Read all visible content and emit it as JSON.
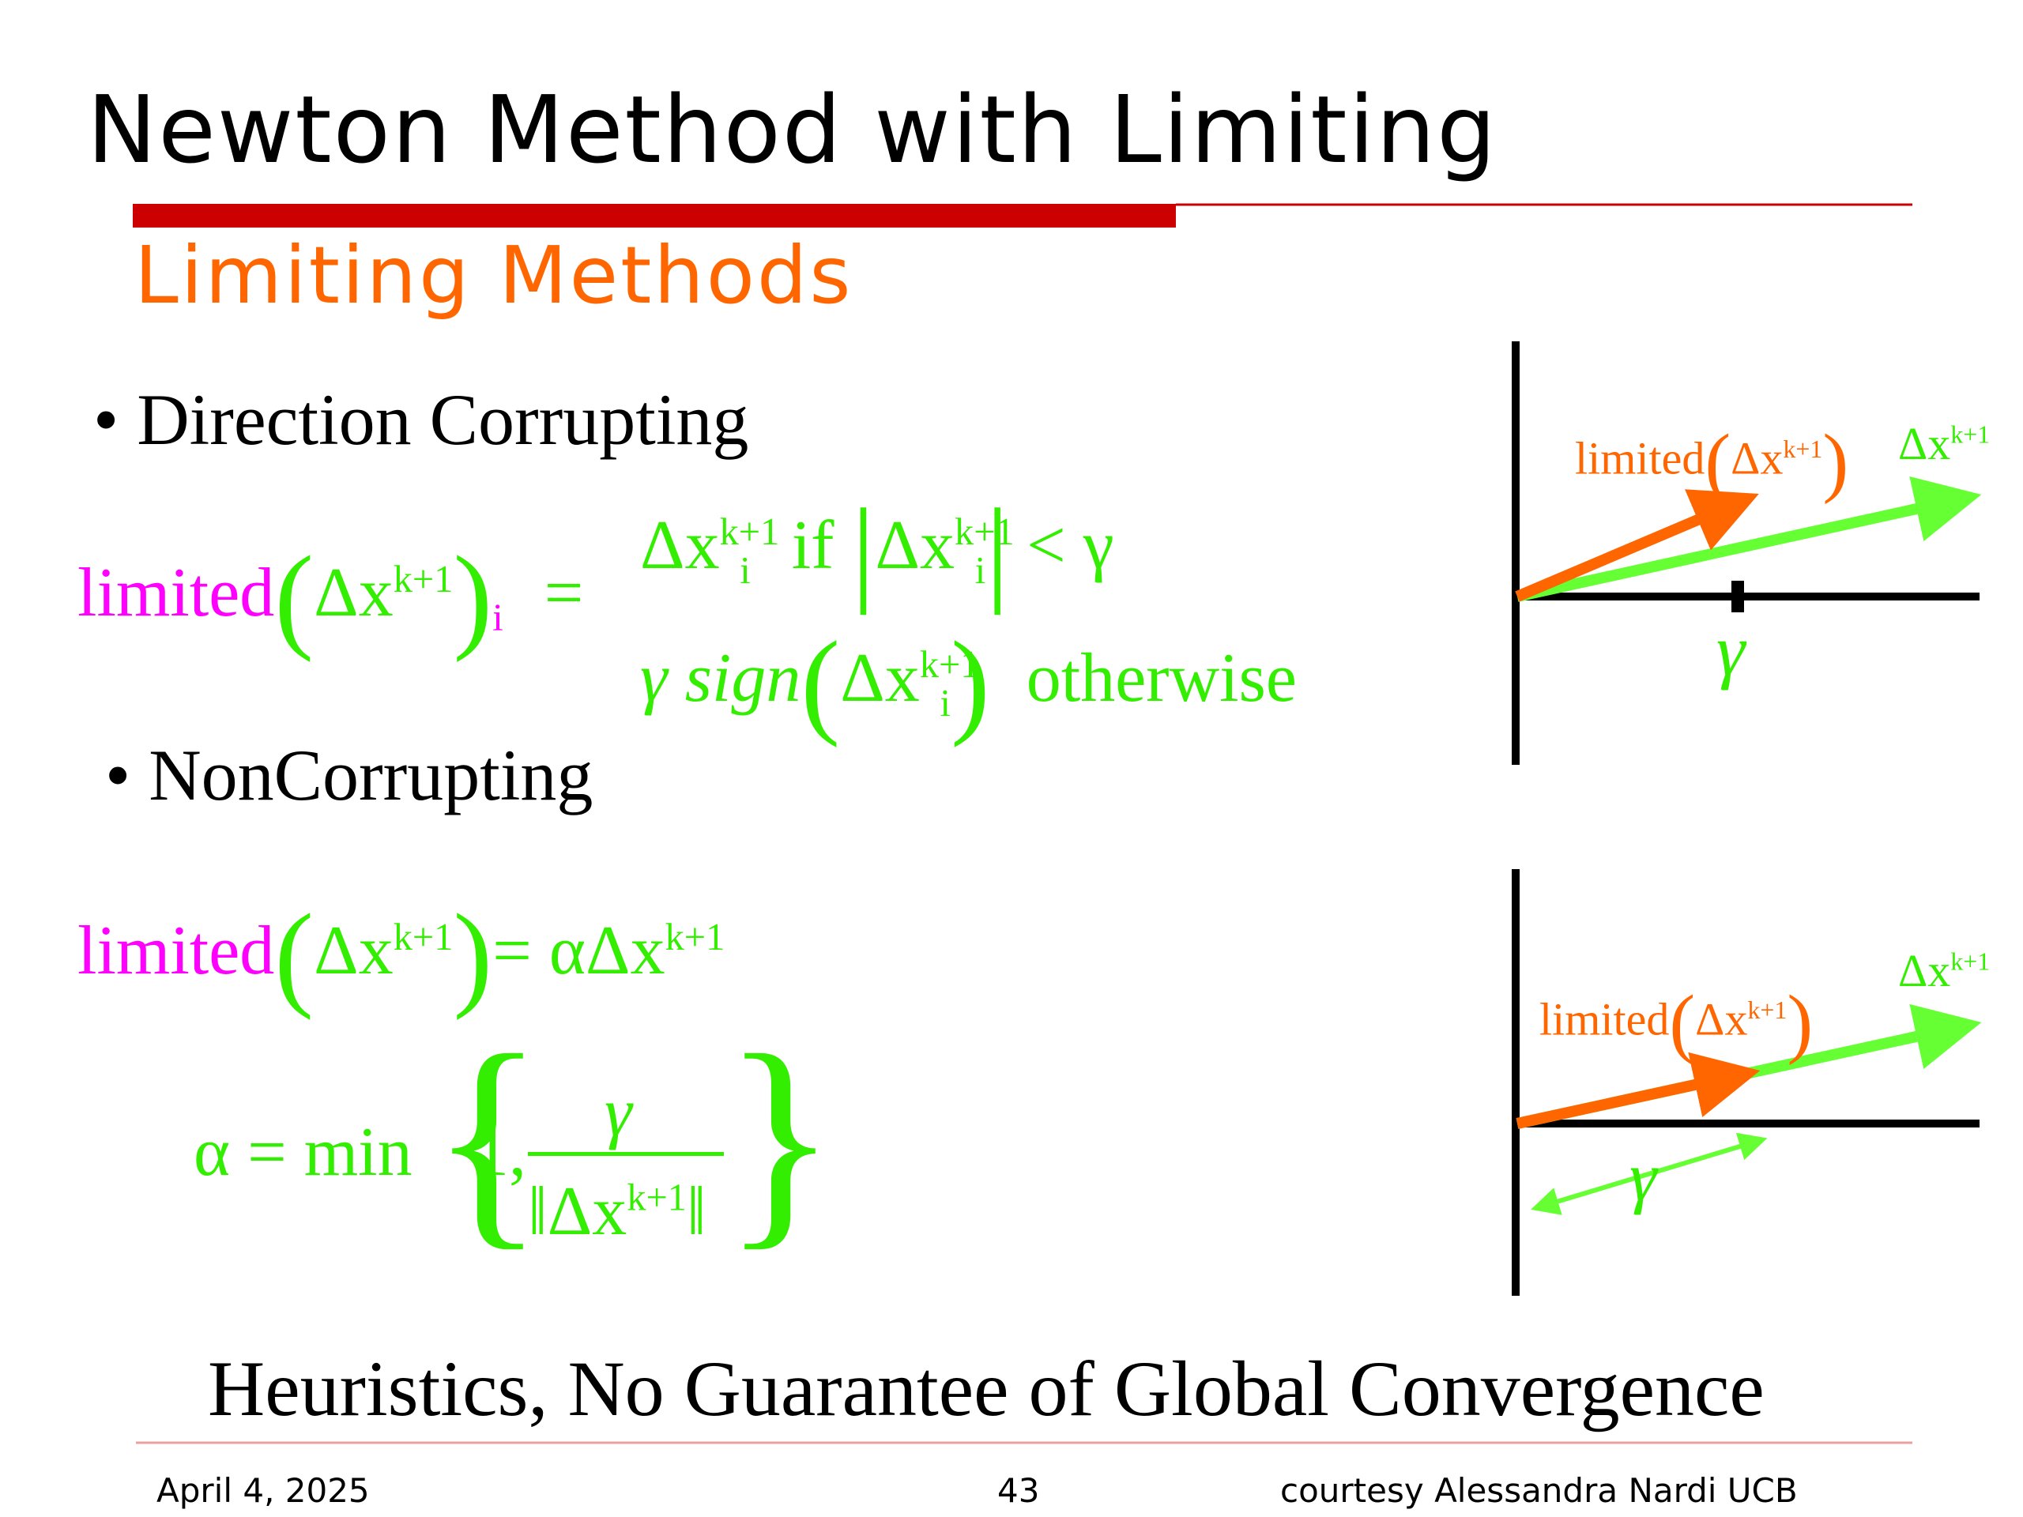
{
  "slide": {
    "title": "Newton Method with Limiting",
    "subtitle": "Limiting Methods",
    "bullet1": "• Direction Corrupting",
    "bullet2": "• NonCorrupting",
    "conclusion": "Heuristics, No Guarantee of Global Convergence"
  },
  "equations": {
    "limited": "limited",
    "delta_x": "Δx",
    "k_plus_1": "k+1",
    "i": "i",
    "equals": "=",
    "if": "if",
    "less_gamma": "< γ",
    "gamma": "γ",
    "sign": "sign",
    "otherwise": "otherwise",
    "alpha_delta": "= αΔx",
    "alpha_eq_min": "α = min",
    "one_comma": "1,"
  },
  "diagrams": {
    "limited_label": "limited",
    "delta_x_label": "Δx",
    "k_plus_1": "k+1",
    "gamma": "γ"
  },
  "footer": {
    "date": "April 4, 2025",
    "page": "43",
    "credit": "courtesy Alessandra Nardi UCB"
  },
  "colors": {
    "title_bar": "#cc0000",
    "subtitle": "#ff6600",
    "limited": "#ff00ff",
    "math_green": "#33ee00",
    "arrow_orange": "#ff6600",
    "arrow_green": "#66ff33"
  }
}
